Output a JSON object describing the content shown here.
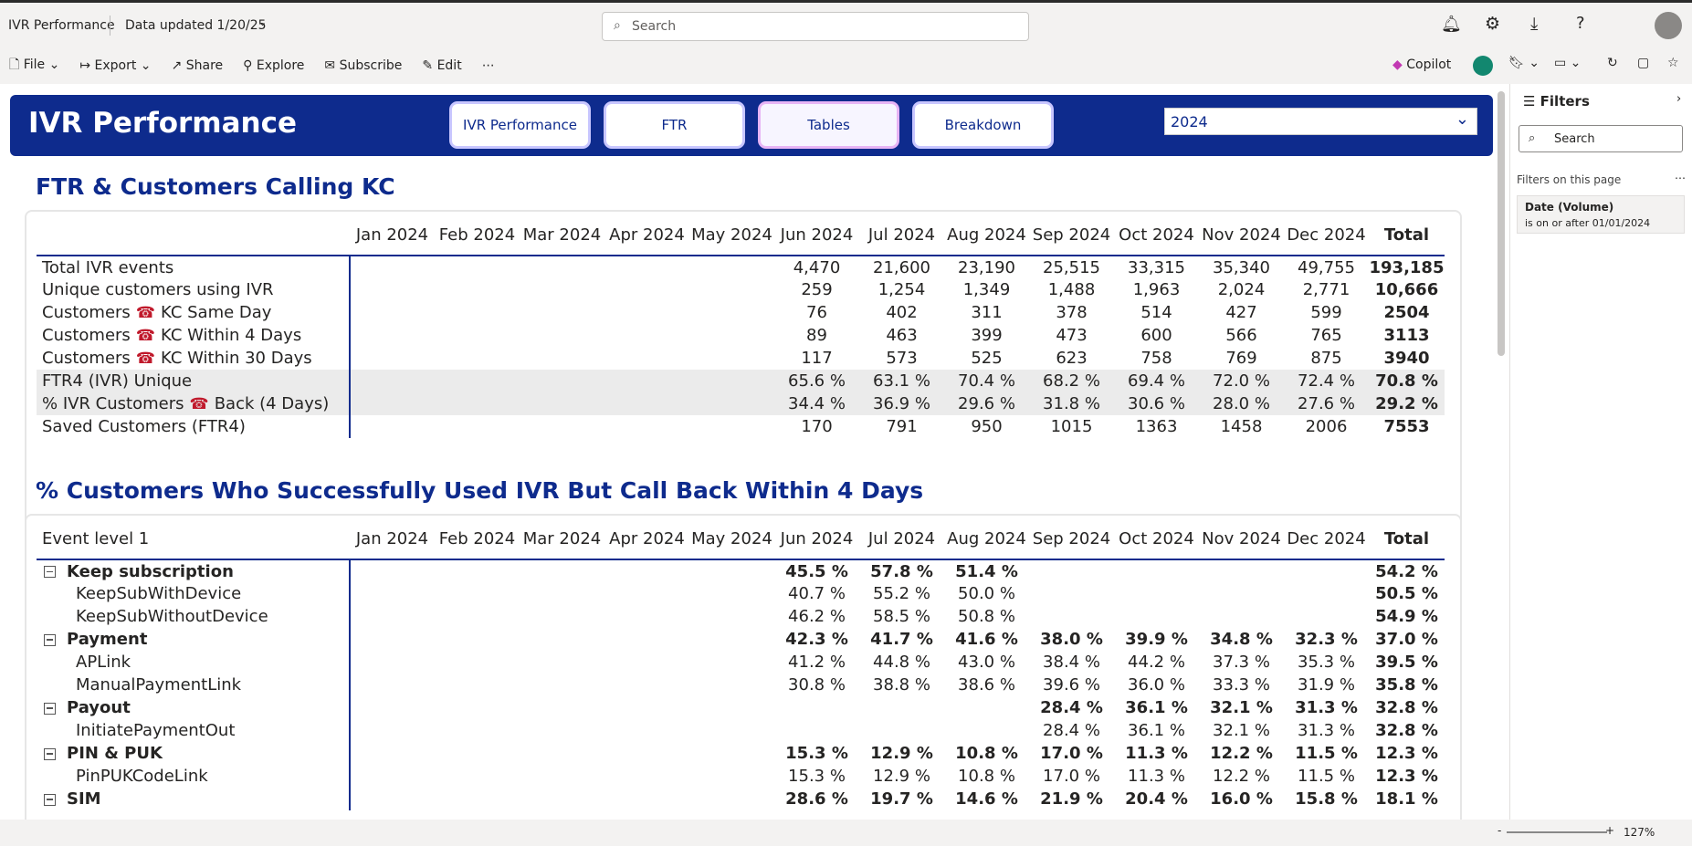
{
  "topbar": {
    "app_title": "IVR Performance",
    "data_updated": "Data updated 1/20/25",
    "search": "Search"
  },
  "toolbar": {
    "items": [
      "File",
      "Export",
      "Share",
      "Explore",
      "Subscribe",
      "Edit"
    ],
    "copilot": "Copilot"
  },
  "report": {
    "title": "IVR Performance",
    "tabs": [
      "IVR Performance",
      "FTR",
      "Tables",
      "Breakdown"
    ],
    "selected_tab": 2,
    "year": "2024"
  },
  "filters": {
    "title": "Filters",
    "search": "Search",
    "section": "Filters on this page",
    "card_title": "Date (Volume)",
    "card_desc": "is on or after 01/01/2024"
  },
  "zoom": "127%",
  "table1": {
    "title": "FTR & Customers Calling KC",
    "columns": [
      "Jan 2024",
      "Feb 2024",
      "Mar 2024",
      "Apr 2024",
      "May 2024",
      "Jun 2024",
      "Jul 2024",
      "Aug 2024",
      "Sep 2024",
      "Oct 2024",
      "Nov 2024",
      "Dec 2024",
      "Total"
    ],
    "rows": [
      {
        "label": [
          "Total IVR events"
        ],
        "cells": [
          null,
          null,
          null,
          null,
          null,
          "4,470",
          "21,600",
          "23,190",
          "25,515",
          "33,315",
          "35,340",
          "49,755",
          "193,185"
        ]
      },
      {
        "label": [
          "Unique customers using IVR"
        ],
        "cells": [
          null,
          null,
          null,
          null,
          null,
          "259",
          "1,254",
          "1,349",
          "1,488",
          "1,963",
          "2,024",
          "2,771",
          "10,666"
        ]
      },
      {
        "label": [
          "Customers",
          "KC Same Day"
        ],
        "cells": [
          null,
          null,
          null,
          null,
          null,
          "76",
          "402",
          "311",
          "378",
          "514",
          "427",
          "599",
          "2504"
        ]
      },
      {
        "label": [
          "Customers",
          "KC Within 4 Days"
        ],
        "cells": [
          null,
          null,
          null,
          null,
          null,
          "89",
          "463",
          "399",
          "473",
          "600",
          "566",
          "765",
          "3113"
        ]
      },
      {
        "label": [
          "Customers",
          "KC Within 30 Days"
        ],
        "cells": [
          null,
          null,
          null,
          null,
          null,
          "117",
          "573",
          "525",
          "623",
          "758",
          "769",
          "875",
          "3940"
        ]
      },
      {
        "label": [
          "FTR4 (IVR) Unique"
        ],
        "shaded": true,
        "cells": [
          null,
          null,
          null,
          null,
          null,
          "65.6 %",
          "63.1 %",
          "70.4 %",
          "68.2 %",
          "69.4 %",
          "72.0 %",
          "72.4 %",
          "70.8 %"
        ]
      },
      {
        "label": [
          "% IVR Customers",
          "Back (4 Days)"
        ],
        "shaded": true,
        "cells": [
          null,
          null,
          null,
          null,
          null,
          "34.4 %",
          "36.9 %",
          "29.6 %",
          "31.8 %",
          "30.6 %",
          "28.0 %",
          "27.6 %",
          "29.2 %"
        ]
      },
      {
        "label": [
          "Saved Customers (FTR4)"
        ],
        "cells": [
          null,
          null,
          null,
          null,
          null,
          "170",
          "791",
          "950",
          "1015",
          "1363",
          "1458",
          "2006",
          "7553"
        ]
      }
    ]
  },
  "table2": {
    "title": "% Customers Who Successfully Used IVR But Call Back Within 4 Days",
    "header": "Event level 1",
    "columns": [
      "Jan 2024",
      "Feb 2024",
      "Mar 2024",
      "Apr 2024",
      "May 2024",
      "Jun 2024",
      "Jul 2024",
      "Aug 2024",
      "Sep 2024",
      "Oct 2024",
      "Nov 2024",
      "Dec 2024",
      "Total"
    ],
    "rows": [
      {
        "label": "Keep subscription",
        "group": true,
        "cells": [
          null,
          null,
          null,
          null,
          null,
          "45.5 %",
          "57.8 %",
          "51.4 %",
          null,
          null,
          null,
          null,
          "54.2 %"
        ]
      },
      {
        "label": "KeepSubWithDevice",
        "cells": [
          null,
          null,
          null,
          null,
          null,
          "40.7 %",
          "55.2 %",
          "50.0 %",
          null,
          null,
          null,
          null,
          "50.5 %"
        ]
      },
      {
        "label": "KeepSubWithoutDevice",
        "cells": [
          null,
          null,
          null,
          null,
          null,
          "46.2 %",
          "58.5 %",
          "50.8 %",
          null,
          null,
          null,
          null,
          "54.9 %"
        ]
      },
      {
        "label": "Payment",
        "group": true,
        "cells": [
          null,
          null,
          null,
          null,
          null,
          "42.3 %",
          "41.7 %",
          "41.6 %",
          "38.0 %",
          "39.9 %",
          "34.8 %",
          "32.3 %",
          "37.0 %"
        ]
      },
      {
        "label": "APLink",
        "cells": [
          null,
          null,
          null,
          null,
          null,
          "41.2 %",
          "44.8 %",
          "43.0 %",
          "38.4 %",
          "44.2 %",
          "37.3 %",
          "35.3 %",
          "39.5 %"
        ]
      },
      {
        "label": "ManualPaymentLink",
        "cells": [
          null,
          null,
          null,
          null,
          null,
          "30.8 %",
          "38.8 %",
          "38.6 %",
          "39.6 %",
          "36.0 %",
          "33.3 %",
          "31.9 %",
          "35.8 %"
        ]
      },
      {
        "label": "Payout",
        "group": true,
        "cells": [
          null,
          null,
          null,
          null,
          null,
          null,
          null,
          null,
          "28.4 %",
          "36.1 %",
          "32.1 %",
          "31.3 %",
          "32.8 %"
        ]
      },
      {
        "label": "InitiatePaymentOut",
        "cells": [
          null,
          null,
          null,
          null,
          null,
          null,
          null,
          null,
          "28.4 %",
          "36.1 %",
          "32.1 %",
          "31.3 %",
          "32.8 %"
        ]
      },
      {
        "label": "PIN & PUK",
        "group": true,
        "cells": [
          null,
          null,
          null,
          null,
          null,
          "15.3 %",
          "12.9 %",
          "10.8 %",
          "17.0 %",
          "11.3 %",
          "12.2 %",
          "11.5 %",
          "12.3 %"
        ]
      },
      {
        "label": "PinPUKCodeLink",
        "cells": [
          null,
          null,
          null,
          null,
          null,
          "15.3 %",
          "12.9 %",
          "10.8 %",
          "17.0 %",
          "11.3 %",
          "12.2 %",
          "11.5 %",
          "12.3 %"
        ]
      },
      {
        "label": "SIM",
        "group": true,
        "cells": [
          null,
          null,
          null,
          null,
          null,
          "28.6 %",
          "19.7 %",
          "14.6 %",
          "21.9 %",
          "20.4 %",
          "16.0 %",
          "15.8 %",
          "18.1 %"
        ]
      }
    ]
  }
}
